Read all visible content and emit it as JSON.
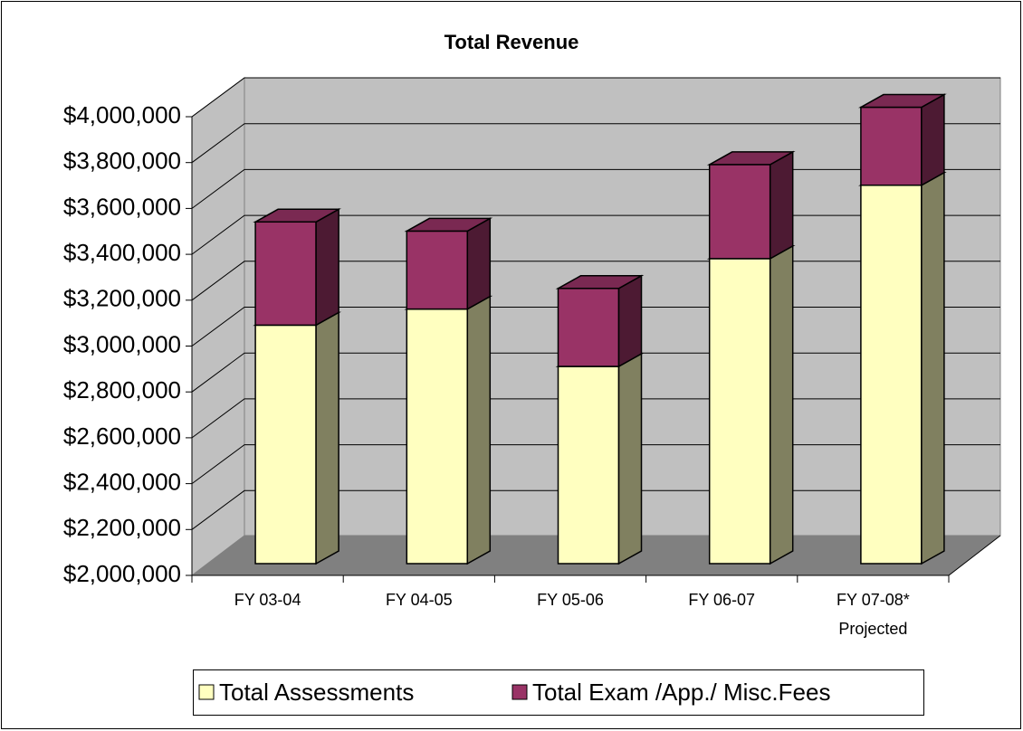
{
  "chart_data": {
    "type": "bar3d_stacked",
    "title": "Total Revenue",
    "categories": [
      "FY 03-04",
      "FY 04-05",
      "FY 05-06",
      "FY 06-07",
      "FY 07-08*\nProjected"
    ],
    "series": [
      {
        "name": "Total Assessments",
        "color": "#ffffc0",
        "values": [
          3040000,
          3110000,
          2860000,
          3330000,
          3650000
        ]
      },
      {
        "name": "Total Exam /App./ Misc.Fees",
        "color": "#993366",
        "values": [
          450000,
          340000,
          340000,
          410000,
          340000
        ]
      }
    ],
    "ylim": [
      2000000,
      4000000
    ],
    "yticks": [
      {
        "value": 2000000,
        "label": "$2,000,000"
      },
      {
        "value": 2200000,
        "label": "$2,200,000"
      },
      {
        "value": 2400000,
        "label": "$2,400,000"
      },
      {
        "value": 2600000,
        "label": "$2,600,000"
      },
      {
        "value": 2800000,
        "label": "$2,800,000"
      },
      {
        "value": 3000000,
        "label": "$3,000,000"
      },
      {
        "value": 3200000,
        "label": "$3,200,000"
      },
      {
        "value": 3400000,
        "label": "$3,400,000"
      },
      {
        "value": 3600000,
        "label": "$3,600,000"
      },
      {
        "value": 3800000,
        "label": "$3,800,000"
      },
      {
        "value": 4000000,
        "label": "$4,000,000"
      }
    ],
    "grid": true,
    "legend": "bottom"
  }
}
